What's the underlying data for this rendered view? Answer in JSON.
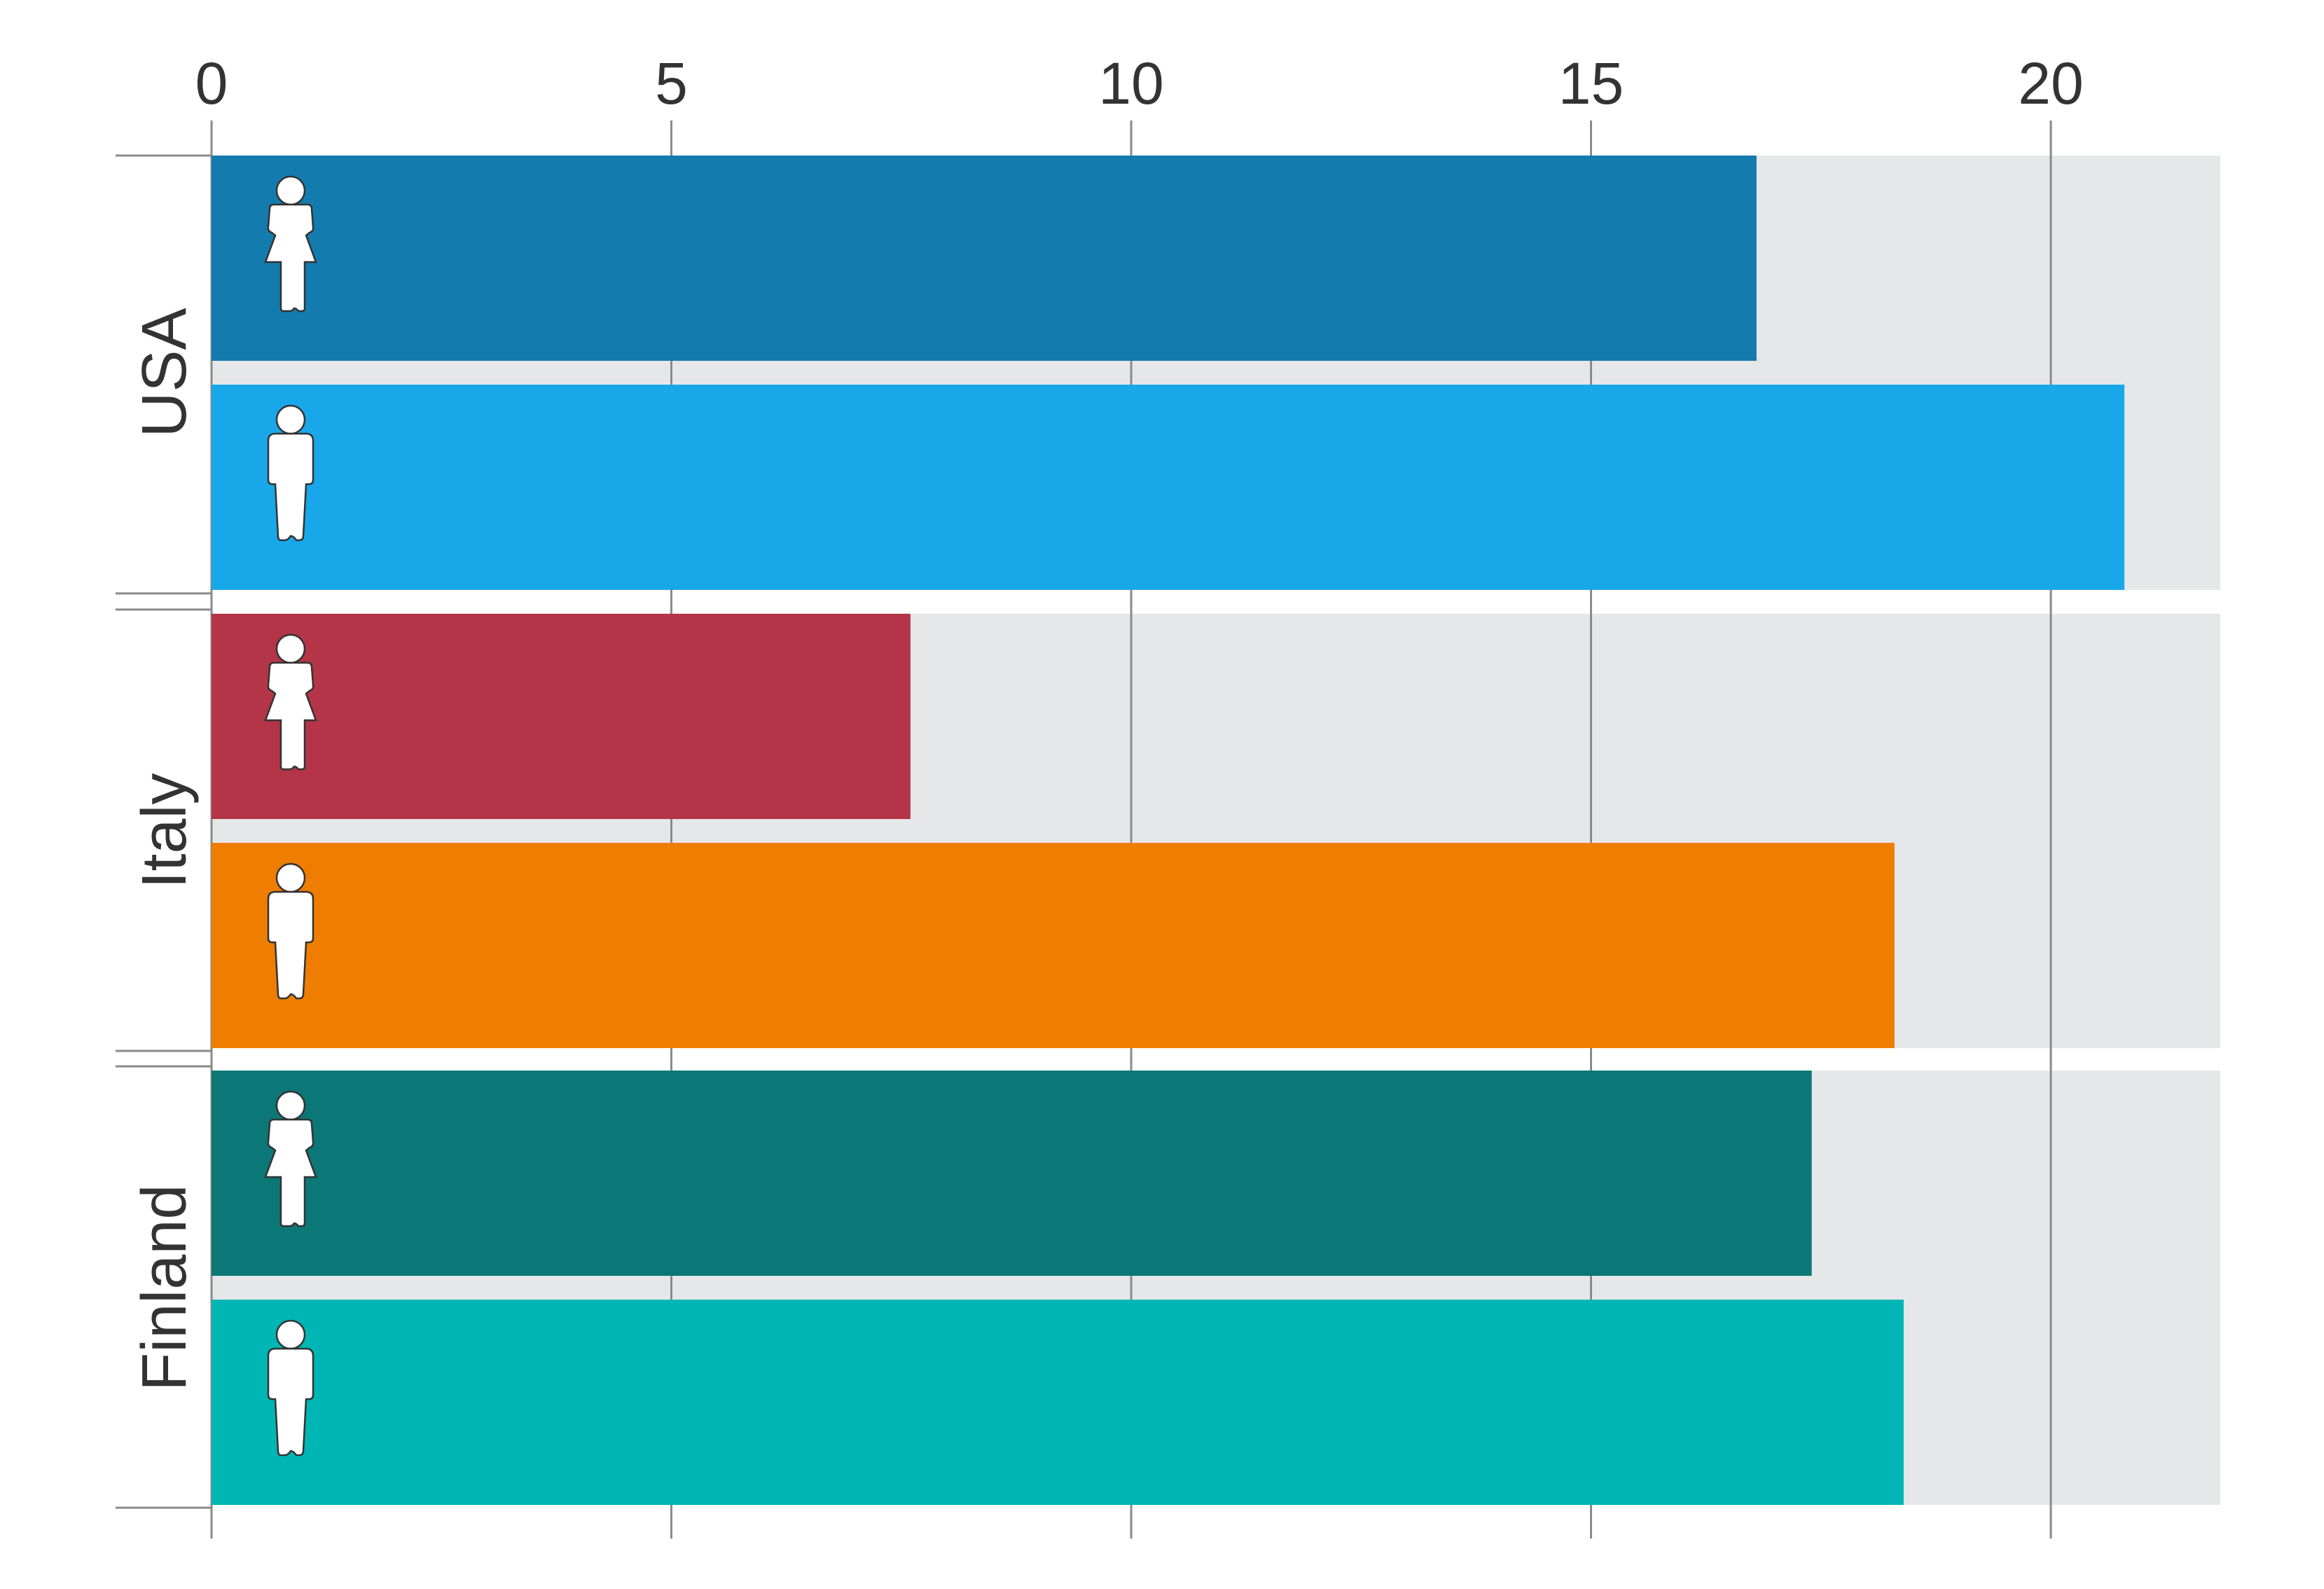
{
  "chart_data": {
    "type": "bar",
    "orientation": "horizontal",
    "title": "",
    "xlabel": "",
    "ylabel": "",
    "xlim": [
      0,
      22
    ],
    "x_ticks": [
      0,
      5,
      10,
      15,
      20
    ],
    "x_tick_labels": [
      "0",
      "5",
      "10",
      "15",
      "20"
    ],
    "x_axis_position": "top",
    "grid": true,
    "legend": "none",
    "groups": [
      {
        "category": "USA",
        "bars": [
          {
            "gender": "female",
            "icon": "female-person-icon",
            "value": 16.8,
            "color": "#137bae"
          },
          {
            "gender": "male",
            "icon": "male-person-icon",
            "value": 20.8,
            "color": "#18a7e9"
          }
        ]
      },
      {
        "category": "Italy",
        "bars": [
          {
            "gender": "female",
            "icon": "female-person-icon",
            "value": 7.6,
            "color": "#b33547"
          },
          {
            "gender": "male",
            "icon": "male-person-icon",
            "value": 18.3,
            "color": "#ef7d00"
          }
        ]
      },
      {
        "category": "Finland",
        "bars": [
          {
            "gender": "female",
            "icon": "female-person-icon",
            "value": 17.4,
            "color": "#0b7777"
          },
          {
            "gender": "male",
            "icon": "male-person-icon",
            "value": 18.4,
            "color": "#00b6b4"
          }
        ]
      }
    ],
    "track_color": "#e6e7e9"
  }
}
